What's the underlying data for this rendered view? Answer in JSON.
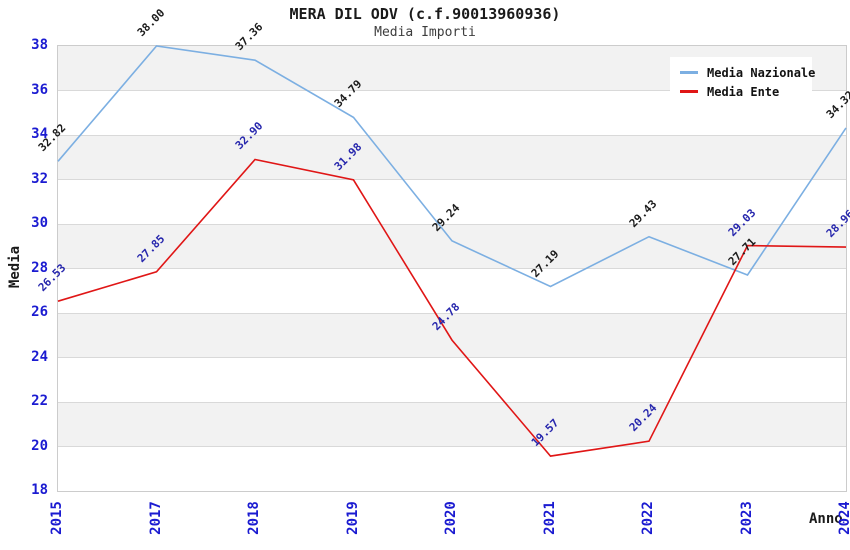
{
  "header": {
    "title": "MERA DIL ODV (c.f.90013960936)",
    "subtitle": "Media Importi"
  },
  "chart_data": {
    "type": "line",
    "title": "MERA DIL ODV (c.f.90013960936)",
    "subtitle": "Media Importi",
    "xlabel": "Anno",
    "ylabel": "Media",
    "categories": [
      "2015",
      "2017",
      "2018",
      "2019",
      "2020",
      "2021",
      "2022",
      "2023",
      "2024"
    ],
    "ylim": [
      18,
      38
    ],
    "ytick_step": 2,
    "grid": "horizontal-bands-alternating",
    "legend_position": "top-right",
    "series": [
      {
        "name": "Media Nazionale",
        "color": "#7cafe2",
        "label_color": "#1c1c1c",
        "values": [
          32.82,
          38.0,
          37.36,
          34.79,
          29.24,
          27.19,
          29.43,
          27.71,
          34.32
        ]
      },
      {
        "name": "Media Ente",
        "color": "#e01616",
        "label_color": "#2727ad",
        "values": [
          26.53,
          27.85,
          32.9,
          31.98,
          24.78,
          19.57,
          20.24,
          29.03,
          28.96
        ]
      }
    ],
    "colors": {
      "tick_label": "#1b1bd1",
      "axis_title": "#1a1a1a",
      "band_gray": "#f2f2f2",
      "band_white": "#ffffff",
      "gridline": "#d9d9d9",
      "plot_border": "#cccccc",
      "legend_bg": "#ffffff"
    }
  }
}
